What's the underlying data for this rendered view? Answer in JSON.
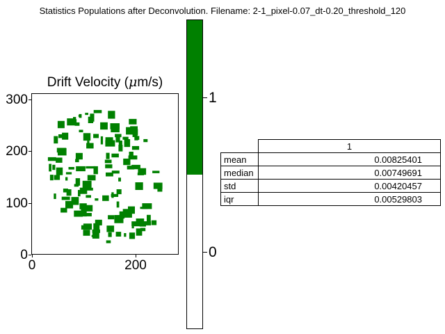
{
  "figure": {
    "suptitle": "Statistics Populations after Deconvolution. Filename: 2-1_pixel-0.07_dt-0.20_threshold_120"
  },
  "axes": {
    "title_prefix": "Drift Velocity (",
    "title_mu": "μ",
    "title_suffix": "m/s)"
  },
  "colorbar": {
    "colors": [
      "#ffffff",
      "#008000"
    ],
    "tick_labels": [
      "0",
      "1"
    ]
  },
  "table": {
    "column_header": "1",
    "rows": [
      {
        "label": "mean",
        "value": "0.00825401"
      },
      {
        "label": "median",
        "value": "0.00749691"
      },
      {
        "label": "std",
        "value": "0.00420457"
      },
      {
        "label": "iqr",
        "value": "0.00529803"
      }
    ]
  },
  "chart_data": {
    "type": "heatmap",
    "title": "Drift Velocity (μm/s)",
    "xlabel": "",
    "ylabel": "",
    "xlim": [
      0,
      285
    ],
    "ylim": [
      0,
      310
    ],
    "x_ticks": [
      "0",
      "200"
    ],
    "y_ticks": [
      "0",
      "100",
      "200",
      "300"
    ],
    "colormap_levels": [
      0,
      1
    ],
    "grid": false
  }
}
